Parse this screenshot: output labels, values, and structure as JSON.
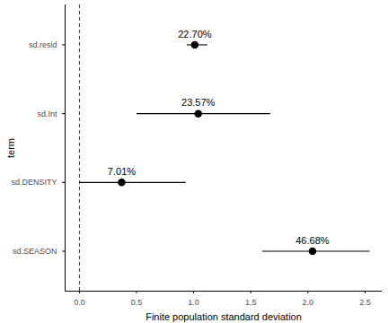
{
  "chart_data": {
    "type": "scatter",
    "orientation": "horizontal",
    "x_label": "Finite population standard deviation",
    "y_label": "term",
    "categories": [
      "sd.resid",
      "sd.Int",
      "sd.DENSITY",
      "sd.SEASON"
    ],
    "values": [
      1.01,
      1.04,
      0.37,
      2.04
    ],
    "lower": [
      0.94,
      0.5,
      0.0,
      1.6
    ],
    "upper": [
      1.12,
      1.67,
      0.93,
      2.54
    ],
    "annotations": [
      "22.70%",
      "23.57%",
      "7.01%",
      "46.68%"
    ],
    "ref_line": 0,
    "color": "#000000",
    "marker": "circle",
    "xlim": [
      -0.125,
      2.65
    ],
    "xticks": [
      {
        "value": 0,
        "label": "0.0"
      },
      {
        "value": 0.5,
        "label": "0.5"
      },
      {
        "value": 1,
        "label": "1.0"
      },
      {
        "value": 1.5,
        "label": "1.5"
      },
      {
        "value": 2,
        "label": "2.0"
      },
      {
        "value": 2.5,
        "label": "2.5"
      }
    ],
    "grid": false
  }
}
